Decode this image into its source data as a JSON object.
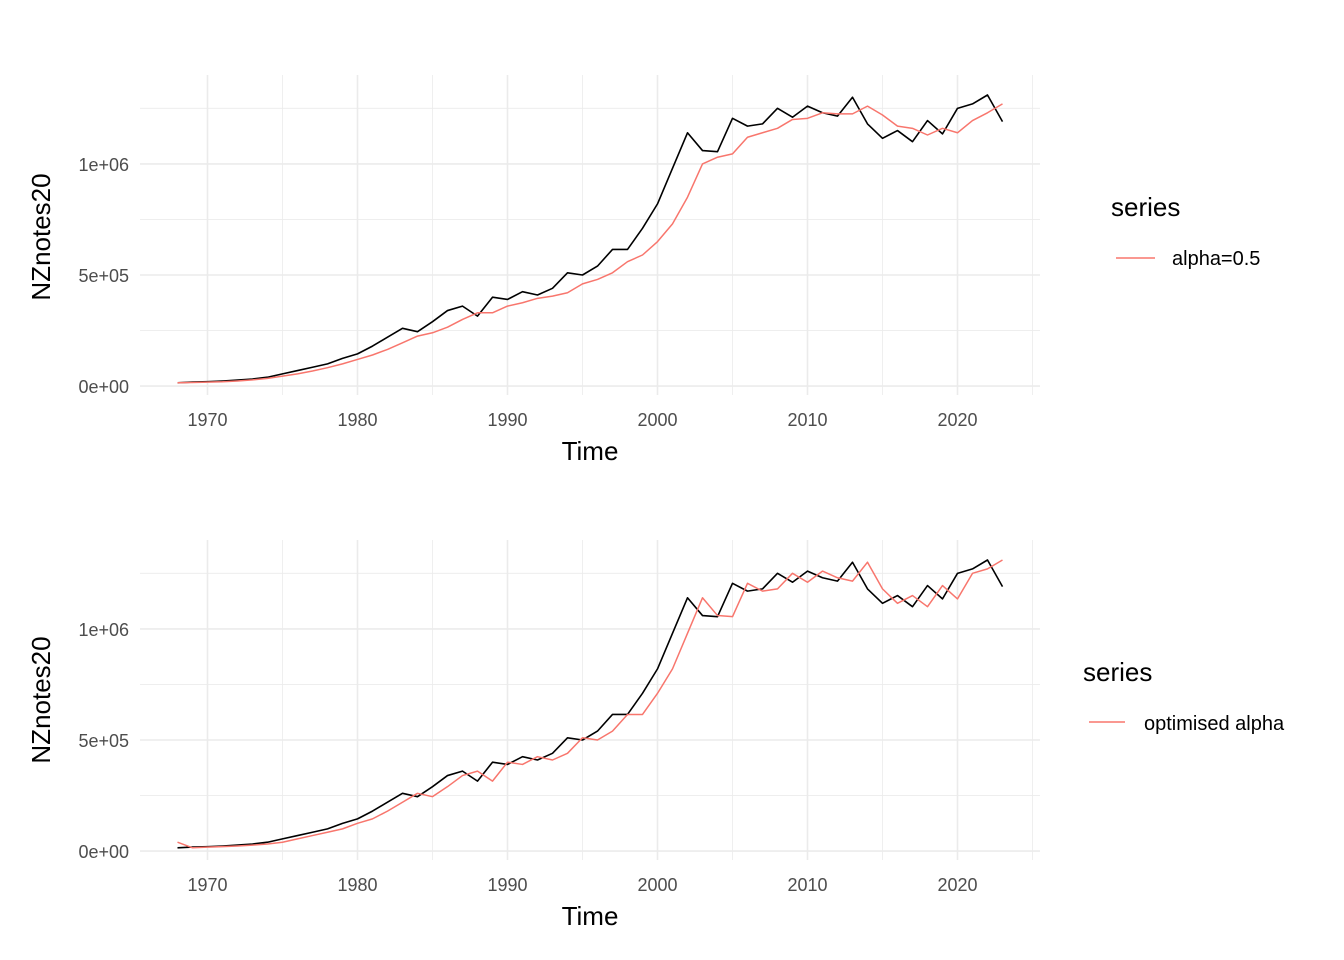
{
  "chart_data": [
    {
      "type": "line",
      "xlabel": "Time",
      "ylabel": "NZnotes20",
      "xlim": [
        1965.5,
        2025.5
      ],
      "ylim": [
        -40000,
        1400000
      ],
      "x_ticks": [
        1970,
        1980,
        1990,
        2000,
        2010,
        2020
      ],
      "x_tick_labels": [
        "1970",
        "1980",
        "1990",
        "2000",
        "2010",
        "2020"
      ],
      "y_ticks": [
        0,
        500000,
        1000000
      ],
      "y_tick_labels": [
        "0e+00",
        "5e+05",
        "1e+06"
      ],
      "grid": true,
      "legend": {
        "title": "series",
        "placement": "right",
        "entries": [
          {
            "label": "alpha=0.5",
            "color": "#F8766D"
          }
        ]
      },
      "x": [
        1968,
        1969,
        1970,
        1971,
        1972,
        1973,
        1974,
        1975,
        1976,
        1977,
        1978,
        1979,
        1980,
        1981,
        1982,
        1983,
        1984,
        1985,
        1986,
        1987,
        1988,
        1989,
        1990,
        1991,
        1992,
        1993,
        1994,
        1995,
        1996,
        1997,
        1998,
        1999,
        2000,
        2001,
        2002,
        2003,
        2004,
        2005,
        2006,
        2007,
        2008,
        2009,
        2010,
        2011,
        2012,
        2013,
        2014,
        2015,
        2016,
        2017,
        2018,
        2019,
        2020,
        2021,
        2022,
        2023
      ],
      "series": [
        {
          "color": "#000000",
          "values": [
            15000,
            18000,
            20000,
            23000,
            27000,
            32000,
            40000,
            55000,
            70000,
            85000,
            100000,
            125000,
            145000,
            180000,
            220000,
            260000,
            245000,
            290000,
            340000,
            360000,
            315000,
            400000,
            390000,
            425000,
            410000,
            440000,
            510000,
            500000,
            540000,
            615000,
            615000,
            710000,
            820000,
            980000,
            1140000,
            1060000,
            1055000,
            1205000,
            1170000,
            1180000,
            1250000,
            1210000,
            1260000,
            1230000,
            1215000,
            1300000,
            1180000,
            1115000,
            1150000,
            1100000,
            1195000,
            1135000,
            1250000,
            1270000,
            1310000,
            1190000
          ]
        },
        {
          "color": "#F8766D",
          "values": [
            15000,
            16500,
            18000,
            19500,
            23000,
            28000,
            35000,
            45000,
            55000,
            68000,
            83000,
            100000,
            120000,
            140000,
            165000,
            195000,
            225000,
            240000,
            265000,
            300000,
            330000,
            330000,
            360000,
            375000,
            395000,
            405000,
            420000,
            460000,
            480000,
            510000,
            560000,
            590000,
            650000,
            730000,
            850000,
            1000000,
            1030000,
            1045000,
            1120000,
            1140000,
            1160000,
            1200000,
            1205000,
            1230000,
            1225000,
            1225000,
            1260000,
            1220000,
            1170000,
            1160000,
            1130000,
            1160000,
            1140000,
            1195000,
            1230000,
            1270000
          ]
        }
      ]
    },
    {
      "type": "line",
      "xlabel": "Time",
      "ylabel": "NZnotes20",
      "xlim": [
        1965.5,
        2025.5
      ],
      "ylim": [
        -40000,
        1400000
      ],
      "x_ticks": [
        1970,
        1980,
        1990,
        2000,
        2010,
        2020
      ],
      "x_tick_labels": [
        "1970",
        "1980",
        "1990",
        "2000",
        "2010",
        "2020"
      ],
      "y_ticks": [
        0,
        500000,
        1000000
      ],
      "y_tick_labels": [
        "0e+00",
        "5e+05",
        "1e+06"
      ],
      "grid": true,
      "legend": {
        "title": "series",
        "placement": "right",
        "entries": [
          {
            "label": "optimised alpha",
            "color": "#F8766D"
          }
        ]
      },
      "x": [
        1968,
        1969,
        1970,
        1971,
        1972,
        1973,
        1974,
        1975,
        1976,
        1977,
        1978,
        1979,
        1980,
        1981,
        1982,
        1983,
        1984,
        1985,
        1986,
        1987,
        1988,
        1989,
        1990,
        1991,
        1992,
        1993,
        1994,
        1995,
        1996,
        1997,
        1998,
        1999,
        2000,
        2001,
        2002,
        2003,
        2004,
        2005,
        2006,
        2007,
        2008,
        2009,
        2010,
        2011,
        2012,
        2013,
        2014,
        2015,
        2016,
        2017,
        2018,
        2019,
        2020,
        2021,
        2022,
        2023
      ],
      "series": [
        {
          "color": "#000000",
          "values": [
            15000,
            18000,
            20000,
            23000,
            27000,
            32000,
            40000,
            55000,
            70000,
            85000,
            100000,
            125000,
            145000,
            180000,
            220000,
            260000,
            245000,
            290000,
            340000,
            360000,
            315000,
            400000,
            390000,
            425000,
            410000,
            440000,
            510000,
            500000,
            540000,
            615000,
            615000,
            710000,
            820000,
            980000,
            1140000,
            1060000,
            1055000,
            1205000,
            1170000,
            1180000,
            1250000,
            1210000,
            1260000,
            1230000,
            1215000,
            1300000,
            1180000,
            1115000,
            1150000,
            1100000,
            1195000,
            1135000,
            1250000,
            1270000,
            1310000,
            1190000
          ]
        },
        {
          "color": "#F8766D",
          "values": [
            40000,
            15000,
            18000,
            20000,
            23000,
            27000,
            32000,
            40000,
            55000,
            70000,
            85000,
            100000,
            125000,
            145000,
            180000,
            220000,
            260000,
            245000,
            290000,
            340000,
            360000,
            315000,
            400000,
            390000,
            425000,
            410000,
            440000,
            510000,
            500000,
            540000,
            615000,
            615000,
            710000,
            820000,
            980000,
            1140000,
            1060000,
            1055000,
            1205000,
            1170000,
            1180000,
            1250000,
            1210000,
            1260000,
            1230000,
            1215000,
            1300000,
            1180000,
            1115000,
            1150000,
            1100000,
            1195000,
            1135000,
            1250000,
            1270000,
            1310000
          ]
        }
      ]
    }
  ]
}
